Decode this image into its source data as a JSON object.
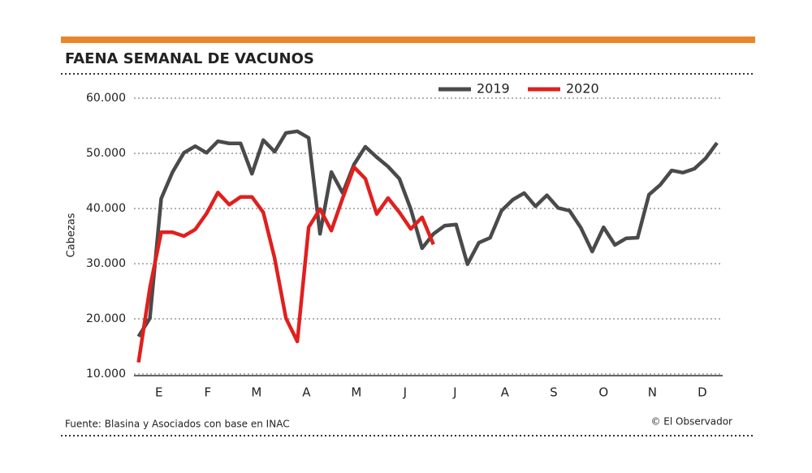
{
  "chart_data": {
    "type": "line",
    "title": "FAENA SEMANAL DE VACUNOS",
    "y_label": "Cabezas",
    "source": "Fuente: Blasina y Asociados con base en INAC",
    "credit": "© El Observador",
    "x": [
      1,
      2,
      3,
      4,
      5,
      6,
      7,
      8,
      9,
      10,
      11,
      12,
      13,
      14,
      15,
      16,
      17,
      18,
      19,
      20,
      21,
      22,
      23,
      24,
      25,
      26,
      27,
      28,
      29,
      30,
      31,
      32,
      33,
      34,
      35,
      36,
      37,
      38,
      39,
      40,
      41,
      42,
      43,
      44,
      45,
      46,
      47,
      48,
      49,
      50,
      51,
      52
    ],
    "xlim": [
      0.6,
      52.5
    ],
    "xticks": [
      {
        "value": 2.8,
        "label": "E"
      },
      {
        "value": 7.1,
        "label": "F"
      },
      {
        "value": 11.4,
        "label": "M"
      },
      {
        "value": 15.8,
        "label": "A"
      },
      {
        "value": 20.2,
        "label": "M"
      },
      {
        "value": 24.5,
        "label": "J"
      },
      {
        "value": 28.9,
        "label": "J"
      },
      {
        "value": 33.3,
        "label": "A"
      },
      {
        "value": 37.6,
        "label": "S"
      },
      {
        "value": 42.0,
        "label": "O"
      },
      {
        "value": 46.3,
        "label": "N"
      },
      {
        "value": 50.7,
        "label": "D"
      }
    ],
    "ylim": [
      10000,
      60000
    ],
    "yticks": [
      {
        "value": 10000,
        "label": "10.000"
      },
      {
        "value": 20000,
        "label": "20.000"
      },
      {
        "value": 30000,
        "label": "30.000"
      },
      {
        "value": 40000,
        "label": "40.000"
      },
      {
        "value": 50000,
        "label": "50.000"
      },
      {
        "value": 60000,
        "label": "60.000"
      }
    ],
    "grid": true,
    "series": [
      {
        "name": "2019",
        "color": "#4a4a4a",
        "values": [
          16800,
          20100,
          41800,
          46600,
          50100,
          51300,
          50100,
          52200,
          51800,
          51800,
          46300,
          52400,
          50300,
          53700,
          54000,
          52800,
          35400,
          46600,
          42800,
          48000,
          51200,
          49300,
          47600,
          45400,
          39900,
          32800,
          35400,
          36900,
          37100,
          29900,
          33800,
          34700,
          39600,
          41600,
          42800,
          40400,
          42400,
          40100,
          39600,
          36500,
          32200,
          36600,
          33400,
          34600,
          34700,
          42500,
          44300,
          46900,
          46500,
          47200,
          49100,
          51900
        ]
      },
      {
        "name": "2020",
        "color": "#e0201e",
        "values": [
          12100,
          25600,
          35700,
          35700,
          35000,
          36200,
          39100,
          42900,
          40700,
          42100,
          42100,
          39300,
          31000,
          20100,
          15900,
          36600,
          39900,
          36000,
          41900,
          47500,
          45400,
          39000,
          41900,
          39300,
          36300,
          38400,
          33500,
          null,
          null,
          null,
          null,
          null,
          null,
          null,
          null,
          null,
          null,
          null,
          null,
          null,
          null,
          null,
          null,
          null,
          null,
          null,
          null,
          null,
          null,
          null,
          null,
          null
        ]
      }
    ]
  }
}
